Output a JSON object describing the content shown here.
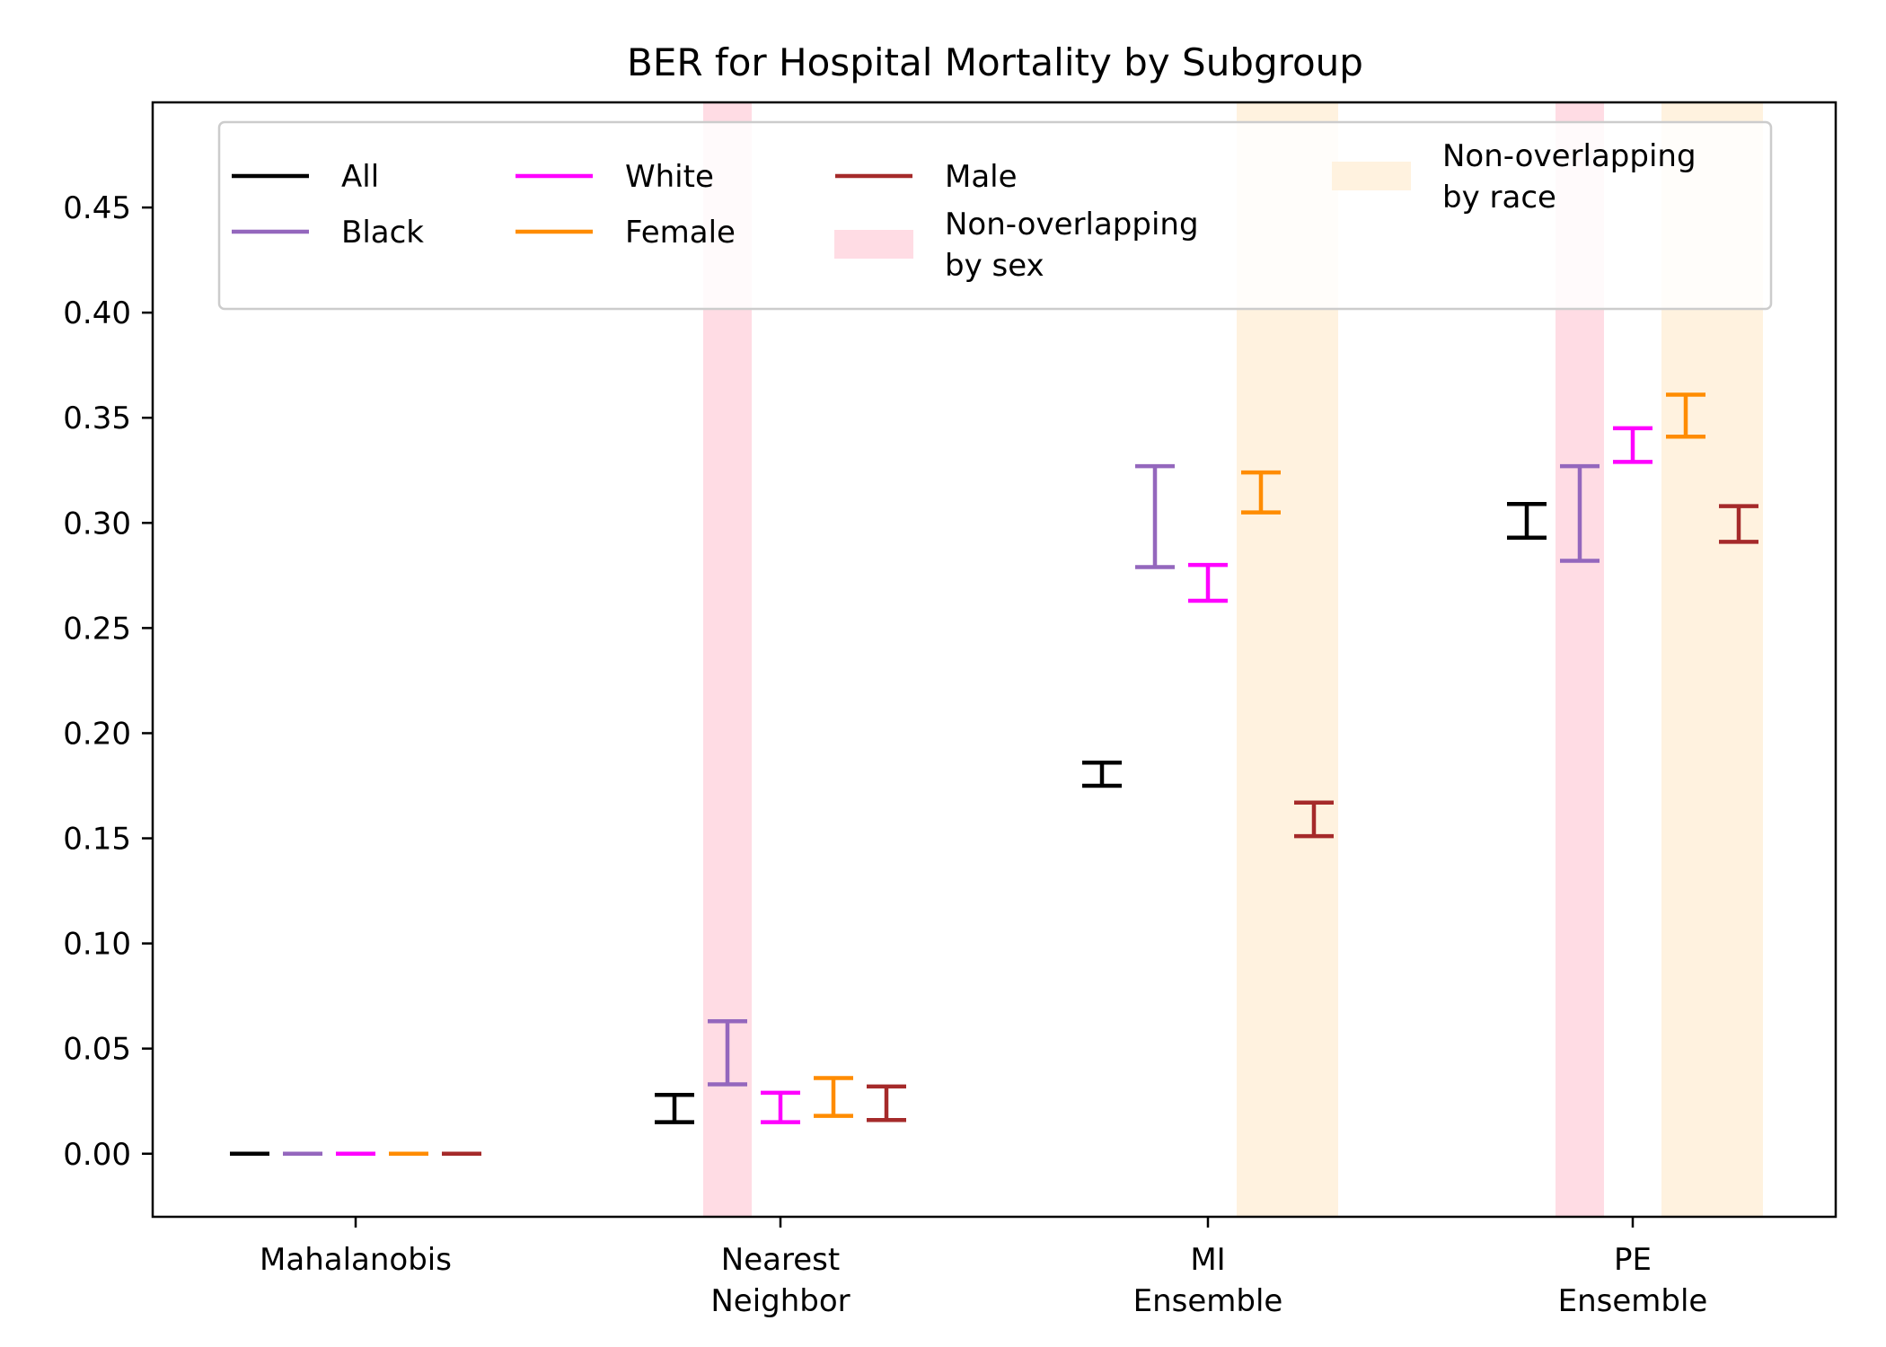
{
  "chart_data": {
    "type": "errorbar",
    "title": "BER for Hospital Mortality by Subgroup",
    "xlabel": "",
    "ylabel": "",
    "categories": [
      [
        "Mahalanobis"
      ],
      [
        "Nearest",
        "Neighbor"
      ],
      [
        "MI",
        "Ensemble"
      ],
      [
        "PE",
        "Ensemble"
      ]
    ],
    "y_ticks": [
      "0.00",
      "0.05",
      "0.10",
      "0.15",
      "0.20",
      "0.25",
      "0.30",
      "0.35",
      "0.40",
      "0.45"
    ],
    "y_tick_values": [
      0,
      0.05,
      0.1,
      0.15,
      0.2,
      0.25,
      0.3,
      0.35,
      0.4,
      0.45
    ],
    "ylim": [
      -0.03,
      0.5
    ],
    "series": [
      {
        "name": "All",
        "color": "#000000",
        "intervals": [
          [
            0.0,
            0.0
          ],
          [
            0.015,
            0.028
          ],
          [
            0.175,
            0.186
          ],
          [
            0.293,
            0.309
          ]
        ]
      },
      {
        "name": "Black",
        "color": "#9467bd",
        "intervals": [
          [
            0.0,
            0.0
          ],
          [
            0.033,
            0.063
          ],
          [
            0.279,
            0.327
          ],
          [
            0.282,
            0.327
          ]
        ]
      },
      {
        "name": "White",
        "color": "#ff00ff",
        "intervals": [
          [
            0.0,
            0.0
          ],
          [
            0.015,
            0.029
          ],
          [
            0.263,
            0.28
          ],
          [
            0.329,
            0.345
          ]
        ]
      },
      {
        "name": "Female",
        "color": "#ff8c00",
        "intervals": [
          [
            0.0,
            0.0
          ],
          [
            0.018,
            0.036
          ],
          [
            0.305,
            0.324
          ],
          [
            0.341,
            0.361
          ]
        ]
      },
      {
        "name": "Male",
        "color": "#a52a2a",
        "intervals": [
          [
            0.0,
            0.0
          ],
          [
            0.016,
            0.032
          ],
          [
            0.151,
            0.167
          ],
          [
            0.291,
            0.308
          ]
        ]
      }
    ],
    "shaded_regions": [
      {
        "label": "Non-overlapping by sex",
        "color": "#ffdce4",
        "category": 1,
        "subgroups": [
          "Black"
        ]
      },
      {
        "label": "Non-overlapping by race",
        "color": "#fff2df",
        "category": 2,
        "subgroups": [
          "Female",
          "Male"
        ]
      },
      {
        "label": "Non-overlapping by sex",
        "color": "#ffdce4",
        "category": 3,
        "subgroups": [
          "Black"
        ]
      },
      {
        "label": "Non-overlapping by race",
        "color": "#fff2df",
        "category": 3,
        "subgroups": [
          "Female",
          "Male"
        ]
      }
    ],
    "legend": {
      "position": "top",
      "columns": 4,
      "entries": [
        {
          "label": [
            "All"
          ],
          "color": "#000000",
          "kind": "line"
        },
        {
          "label": [
            "Black"
          ],
          "color": "#9467bd",
          "kind": "line"
        },
        {
          "label": [
            "White"
          ],
          "color": "#ff00ff",
          "kind": "line"
        },
        {
          "label": [
            "Female"
          ],
          "color": "#ff8c00",
          "kind": "line"
        },
        {
          "label": [
            "Male"
          ],
          "color": "#a52a2a",
          "kind": "line"
        },
        {
          "label": [
            "Non-overlapping",
            "by sex"
          ],
          "color": "#ffdce4",
          "kind": "patch"
        },
        {
          "label": [
            "Non-overlapping",
            "by race"
          ],
          "color": "#fff2df",
          "kind": "patch"
        }
      ]
    },
    "grid": false
  }
}
